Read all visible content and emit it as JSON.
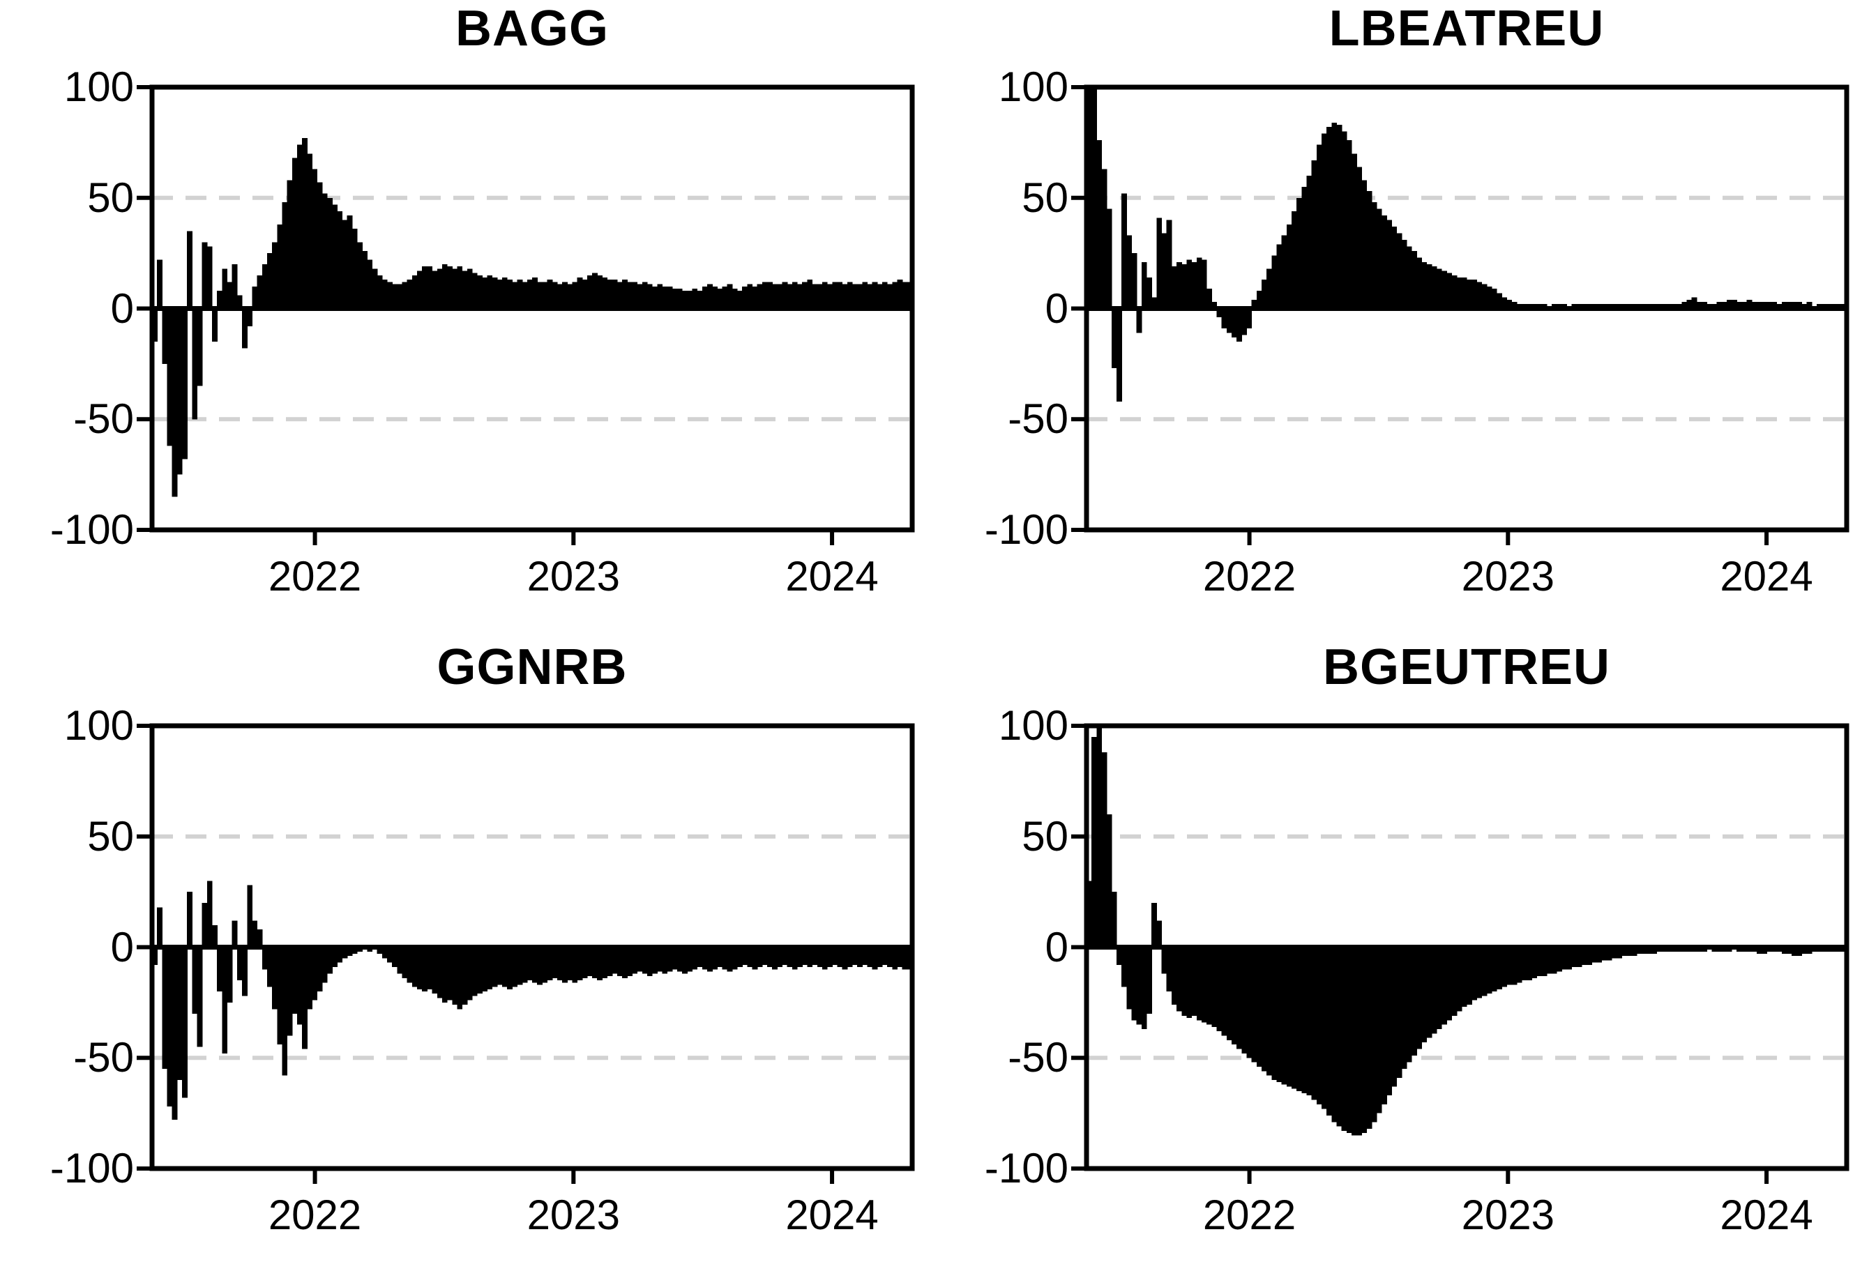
{
  "figure": {
    "background": "#ffffff",
    "text_color": "#000000",
    "description": "2x2 grid of black bar/area charts of weekly values vs time, mid-2021 to mid-2024"
  },
  "chart_data": [
    {
      "type": "bar",
      "title": "BAGG",
      "ylim": [
        -100,
        100
      ],
      "yticks": [
        100,
        50,
        0,
        -50,
        -100
      ],
      "gridlines": [
        50,
        -50
      ],
      "grid_on": true,
      "legend": "none",
      "x_start": 2021.37,
      "x_end": 2024.31,
      "x_tick_years": [
        2022,
        2023,
        2024
      ],
      "x_tick_labels": [
        "2022",
        "2023",
        "2024"
      ],
      "bar_color": "#000000",
      "axis_color": "#000000",
      "gridline_color": "#d2d2d2",
      "values": [
        -15,
        22,
        -25,
        -62,
        -85,
        -75,
        -68,
        35,
        -50,
        -35,
        30,
        28,
        -15,
        8,
        18,
        12,
        20,
        6,
        -18,
        -8,
        10,
        15,
        20,
        25,
        30,
        38,
        48,
        58,
        68,
        74,
        77,
        70,
        63,
        57,
        52,
        50,
        47,
        44,
        40,
        42,
        36,
        30,
        26,
        22,
        18,
        15,
        13,
        12,
        11,
        11,
        12,
        13,
        15,
        17,
        19,
        19,
        17,
        18,
        20,
        19,
        18,
        19,
        17,
        18,
        16,
        15,
        14,
        15,
        14,
        13,
        14,
        13,
        12,
        13,
        12,
        13,
        14,
        12,
        12,
        13,
        12,
        11,
        12,
        11,
        12,
        14,
        13,
        15,
        16,
        15,
        14,
        13,
        13,
        12,
        13,
        12,
        12,
        11,
        12,
        11,
        10,
        11,
        10,
        10,
        9,
        9,
        8,
        8,
        9,
        8,
        10,
        11,
        10,
        9,
        10,
        11,
        9,
        8,
        10,
        11,
        10,
        11,
        12,
        12,
        11,
        11,
        12,
        11,
        12,
        11,
        12,
        13,
        11,
        11,
        12,
        11,
        12,
        12,
        11,
        12,
        11,
        11,
        12,
        11,
        12,
        11,
        12,
        11,
        12,
        13,
        12,
        12
      ]
    },
    {
      "type": "bar",
      "title": "LBEATREU",
      "ylim": [
        -100,
        100
      ],
      "yticks": [
        100,
        50,
        0,
        -50,
        -100
      ],
      "gridlines": [
        50,
        -50
      ],
      "grid_on": true,
      "legend": "none",
      "x_start": 2021.37,
      "x_end": 2024.31,
      "x_tick_years": [
        2022,
        2023,
        2024
      ],
      "x_tick_labels": [
        "2022",
        "2023",
        "2024"
      ],
      "bar_color": "#000000",
      "axis_color": "#000000",
      "gridline_color": "#d2d2d2",
      "values": [
        100,
        100,
        76,
        63,
        45,
        -27,
        -42,
        52,
        33,
        25,
        -11,
        21,
        14,
        5,
        41,
        34,
        40,
        19,
        21,
        20,
        22,
        21,
        23,
        22,
        9,
        3,
        -4,
        -9,
        -11,
        -13,
        -15,
        -12,
        -9,
        4,
        8,
        13,
        18,
        24,
        29,
        33,
        38,
        44,
        50,
        55,
        60,
        67,
        74,
        79,
        82,
        84,
        83,
        80,
        76,
        70,
        64,
        58,
        53,
        48,
        45,
        42,
        40,
        37,
        34,
        31,
        28,
        26,
        23,
        21,
        20,
        19,
        18,
        17,
        16,
        15,
        14,
        14,
        13,
        13,
        12,
        11,
        10,
        9,
        7,
        5,
        4,
        3,
        2,
        2,
        2,
        2,
        2,
        2,
        1,
        2,
        2,
        2,
        1,
        2,
        2,
        2,
        2,
        2,
        2,
        2,
        2,
        2,
        2,
        2,
        2,
        2,
        2,
        2,
        2,
        2,
        2,
        2,
        2,
        2,
        2,
        3,
        4,
        5,
        3,
        3,
        2,
        2,
        3,
        3,
        4,
        4,
        3,
        3,
        4,
        3,
        3,
        3,
        3,
        3,
        2,
        3,
        3,
        3,
        3,
        2,
        3,
        1,
        2,
        2,
        2,
        2,
        2,
        2
      ]
    },
    {
      "type": "bar",
      "title": "GGNRB",
      "ylim": [
        -100,
        100
      ],
      "yticks": [
        100,
        50,
        0,
        -50,
        -100
      ],
      "gridlines": [
        50,
        -50
      ],
      "grid_on": true,
      "legend": "none",
      "x_start": 2021.37,
      "x_end": 2024.31,
      "x_tick_years": [
        2022,
        2023,
        2024
      ],
      "x_tick_labels": [
        "2022",
        "2023",
        "2024"
      ],
      "bar_color": "#000000",
      "axis_color": "#000000",
      "gridline_color": "#d2d2d2",
      "values": [
        -8,
        18,
        -55,
        -72,
        -78,
        -60,
        -68,
        25,
        -30,
        -45,
        20,
        30,
        10,
        -20,
        -48,
        -25,
        12,
        -15,
        -22,
        28,
        12,
        8,
        -10,
        -18,
        -28,
        -44,
        -58,
        -40,
        -30,
        -35,
        -46,
        -28,
        -24,
        -20,
        -16,
        -12,
        -9,
        -7,
        -5,
        -4,
        -3,
        -2,
        -1,
        -2,
        -1,
        -3,
        -5,
        -7,
        -9,
        -12,
        -14,
        -16,
        -18,
        -19,
        -20,
        -19,
        -21,
        -23,
        -25,
        -24,
        -26,
        -28,
        -26,
        -24,
        -22,
        -21,
        -20,
        -19,
        -18,
        -17,
        -18,
        -19,
        -18,
        -17,
        -16,
        -15,
        -16,
        -17,
        -16,
        -15,
        -14,
        -15,
        -16,
        -15,
        -16,
        -15,
        -14,
        -13,
        -14,
        -15,
        -14,
        -13,
        -12,
        -13,
        -14,
        -13,
        -12,
        -11,
        -12,
        -13,
        -12,
        -11,
        -12,
        -11,
        -10,
        -11,
        -12,
        -11,
        -10,
        -9,
        -10,
        -11,
        -10,
        -9,
        -10,
        -11,
        -10,
        -9,
        -8,
        -9,
        -10,
        -9,
        -8,
        -9,
        -10,
        -9,
        -8,
        -9,
        -10,
        -9,
        -8,
        -9,
        -8,
        -9,
        -10,
        -9,
        -8,
        -9,
        -10,
        -9,
        -8,
        -9,
        -8,
        -9,
        -10,
        -9,
        -8,
        -9,
        -10,
        -9,
        -10,
        -10
      ]
    },
    {
      "type": "bar",
      "title": "BGEUTREU",
      "ylim": [
        -100,
        100
      ],
      "yticks": [
        100,
        50,
        0,
        -50,
        -100
      ],
      "gridlines": [
        50,
        -50
      ],
      "grid_on": true,
      "legend": "none",
      "x_start": 2021.37,
      "x_end": 2024.31,
      "x_tick_years": [
        2022,
        2023,
        2024
      ],
      "x_tick_labels": [
        "2022",
        "2023",
        "2024"
      ],
      "bar_color": "#000000",
      "axis_color": "#000000",
      "gridline_color": "#d2d2d2",
      "values": [
        30,
        95,
        100,
        88,
        60,
        25,
        -8,
        -18,
        -28,
        -33,
        -35,
        -37,
        -30,
        20,
        12,
        -12,
        -20,
        -26,
        -29,
        -31,
        -32,
        -31,
        -33,
        -34,
        -35,
        -36,
        -38,
        -40,
        -42,
        -44,
        -46,
        -48,
        -50,
        -52,
        -54,
        -56,
        -58,
        -60,
        -61,
        -62,
        -63,
        -64,
        -65,
        -66,
        -67,
        -69,
        -71,
        -73,
        -76,
        -79,
        -81,
        -83,
        -84,
        -85,
        -85,
        -84,
        -82,
        -79,
        -75,
        -71,
        -67,
        -63,
        -59,
        -55,
        -52,
        -49,
        -46,
        -43,
        -41,
        -39,
        -37,
        -35,
        -33,
        -31,
        -29,
        -27,
        -26,
        -24,
        -23,
        -22,
        -21,
        -20,
        -19,
        -18,
        -17,
        -17,
        -16,
        -15,
        -15,
        -14,
        -13,
        -13,
        -12,
        -12,
        -11,
        -10,
        -10,
        -9,
        -9,
        -8,
        -8,
        -7,
        -7,
        -6,
        -6,
        -5,
        -5,
        -4,
        -4,
        -4,
        -3,
        -3,
        -3,
        -3,
        -2,
        -2,
        -2,
        -2,
        -2,
        -2,
        -2,
        -2,
        -2,
        -2,
        -1,
        -2,
        -2,
        -2,
        -2,
        -1,
        -2,
        -2,
        -2,
        -2,
        -3,
        -3,
        -2,
        -2,
        -2,
        -3,
        -3,
        -4,
        -4,
        -3,
        -3,
        -2,
        -2,
        -2,
        -2,
        -2,
        -2,
        -2
      ]
    }
  ]
}
